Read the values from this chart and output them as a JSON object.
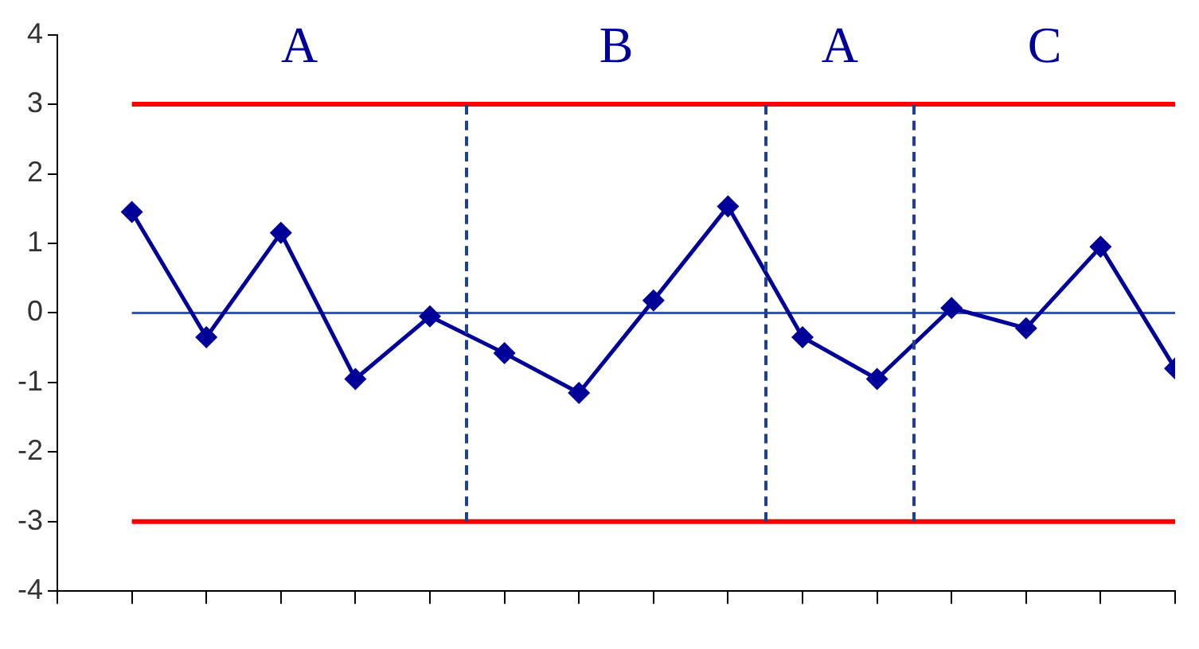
{
  "chart_data": {
    "type": "line",
    "categories": [
      null,
      null,
      null,
      null,
      null,
      null,
      null,
      null,
      null,
      null,
      null,
      null,
      null,
      null,
      null
    ],
    "series": [
      {
        "color": "#000099",
        "values": [
          1.45,
          -0.35,
          1.15,
          -0.95,
          -0.05,
          -0.58,
          -1.15,
          0.18,
          1.53,
          -0.35,
          -0.95,
          0.07,
          -0.22,
          0.95,
          -0.8
        ]
      }
    ],
    "ylim": [
      -4,
      4
    ],
    "yticks": [
      -4,
      -3,
      -2,
      -1,
      0,
      1,
      2,
      3,
      4
    ],
    "ref_lines": [
      {
        "axis": "y",
        "value": 3,
        "color": "#ff0000"
      },
      {
        "axis": "y",
        "value": -3,
        "color": "#ff0000"
      },
      {
        "axis": "y",
        "value": 0,
        "color": "#3355aa"
      }
    ],
    "annotations": [
      "A",
      "B",
      "A",
      "C"
    ],
    "marker": "diamond",
    "line_style": "solid"
  }
}
